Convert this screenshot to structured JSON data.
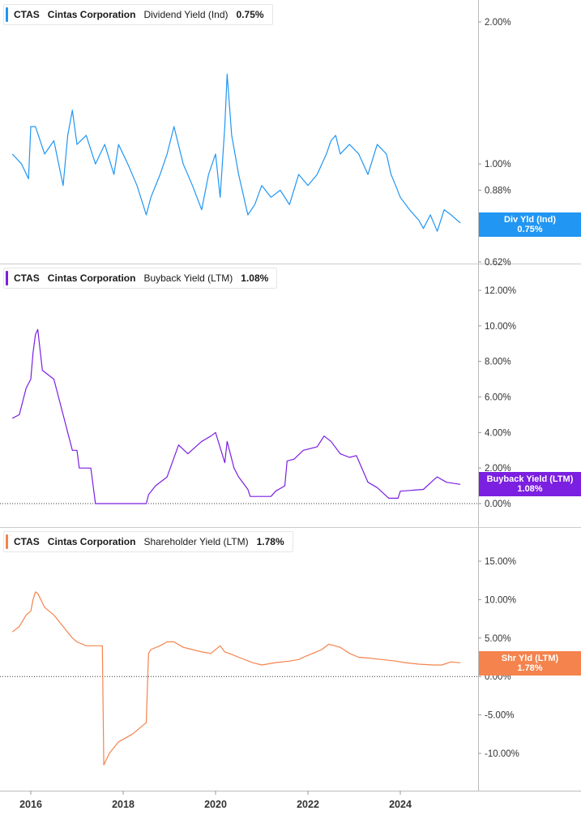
{
  "chart_data": [
    {
      "type": "line",
      "ticker": "CTAS",
      "company": "Cintas Corporation",
      "metric": "Dividend Yield (Ind)",
      "current_value": "0.75%",
      "tag_line1": "Div Yld (Ind)",
      "tag_line2": "0.75%",
      "color": "#2196f3",
      "scale": "log",
      "ylim": [
        0.6,
        2.2
      ],
      "yticks": [
        {
          "value": 2.0,
          "label": "2.00%"
        },
        {
          "value": 1.0,
          "label": "1.00%"
        },
        {
          "value": 0.88,
          "label": "0.88%"
        },
        {
          "value": 0.62,
          "label": "0.62%"
        }
      ],
      "series": [
        {
          "x": [
            2015.6,
            2015.8,
            2015.95,
            2016.0,
            2016.1,
            2016.3,
            2016.5,
            2016.7,
            2016.8,
            2016.9,
            2017.0,
            2017.2,
            2017.4,
            2017.6,
            2017.8,
            2017.9,
            2018.1,
            2018.3,
            2018.5,
            2018.6,
            2018.8,
            2018.95,
            2019.1,
            2019.3,
            2019.5,
            2019.7,
            2019.85,
            2020.0,
            2020.1,
            2020.2,
            2020.25,
            2020.35,
            2020.5,
            2020.7,
            2020.85,
            2021.0,
            2021.2,
            2021.4,
            2021.6,
            2021.8,
            2022.0,
            2022.2,
            2022.4,
            2022.5,
            2022.6,
            2022.7,
            2022.9,
            2023.1,
            2023.3,
            2023.5,
            2023.7,
            2023.8,
            2023.9,
            2024.0,
            2024.2,
            2024.4,
            2024.5,
            2024.65,
            2024.8,
            2024.95,
            2025.1,
            2025.3
          ],
          "y": [
            1.05,
            1.0,
            0.93,
            1.2,
            1.2,
            1.05,
            1.12,
            0.9,
            1.15,
            1.3,
            1.1,
            1.15,
            1.0,
            1.1,
            0.95,
            1.1,
            1.0,
            0.9,
            0.78,
            0.85,
            0.95,
            1.05,
            1.2,
            1.0,
            0.9,
            0.8,
            0.95,
            1.05,
            0.85,
            1.2,
            1.55,
            1.15,
            0.95,
            0.78,
            0.82,
            0.9,
            0.85,
            0.88,
            0.82,
            0.95,
            0.9,
            0.95,
            1.05,
            1.12,
            1.15,
            1.05,
            1.1,
            1.05,
            0.95,
            1.1,
            1.05,
            0.95,
            0.9,
            0.85,
            0.8,
            0.76,
            0.73,
            0.78,
            0.72,
            0.8,
            0.78,
            0.75
          ]
        }
      ]
    },
    {
      "type": "line",
      "ticker": "CTAS",
      "company": "Cintas Corporation",
      "metric": "Buyback Yield (LTM)",
      "current_value": "1.08%",
      "tag_line1": "Buyback Yield (LTM)",
      "tag_line2": "1.08%",
      "color": "#7b1fe0",
      "scale": "linear",
      "ylim": [
        -0.3,
        12.5
      ],
      "yticks": [
        {
          "value": 12,
          "label": "12.00%"
        },
        {
          "value": 10,
          "label": "10.00%"
        },
        {
          "value": 8,
          "label": "8.00%"
        },
        {
          "value": 6,
          "label": "6.00%"
        },
        {
          "value": 4,
          "label": "4.00%"
        },
        {
          "value": 2,
          "label": "2.00%"
        },
        {
          "value": 0,
          "label": "0.00%"
        }
      ],
      "series": [
        {
          "x": [
            2015.6,
            2015.75,
            2015.9,
            2016.0,
            2016.05,
            2016.1,
            2016.15,
            2016.25,
            2016.5,
            2016.7,
            2016.9,
            2017.0,
            2017.05,
            2017.3,
            2017.4,
            2017.55,
            2017.6,
            2018.1,
            2018.2,
            2018.5,
            2018.55,
            2018.7,
            2018.95,
            2019.2,
            2019.4,
            2019.7,
            2019.9,
            2020.0,
            2020.2,
            2020.25,
            2020.4,
            2020.5,
            2020.7,
            2020.75,
            2021.2,
            2021.3,
            2021.5,
            2021.55,
            2021.7,
            2021.9,
            2022.2,
            2022.35,
            2022.5,
            2022.7,
            2022.9,
            2023.05,
            2023.3,
            2023.5,
            2023.75,
            2023.8,
            2023.95,
            2024.0,
            2024.5,
            2024.75,
            2024.8,
            2025.0,
            2025.3
          ],
          "y": [
            4.8,
            5.0,
            6.5,
            7.0,
            8.5,
            9.5,
            9.8,
            7.5,
            7.0,
            5.0,
            3.0,
            3.0,
            2.0,
            2.0,
            0.0,
            0.0,
            0.0,
            0.0,
            0.0,
            0.0,
            0.5,
            1.0,
            1.5,
            3.3,
            2.8,
            3.5,
            3.8,
            4.0,
            2.3,
            3.5,
            2.0,
            1.5,
            0.8,
            0.4,
            0.4,
            0.7,
            1.0,
            2.4,
            2.5,
            3.0,
            3.2,
            3.8,
            3.5,
            2.8,
            2.6,
            2.7,
            1.2,
            0.9,
            0.3,
            0.3,
            0.3,
            0.7,
            0.8,
            1.4,
            1.5,
            1.2,
            1.08
          ]
        }
      ]
    },
    {
      "type": "line",
      "ticker": "CTAS",
      "company": "Cintas Corporation",
      "metric": "Shareholder Yield (LTM)",
      "current_value": "1.78%",
      "tag_line1": "Shr Yld (LTM)",
      "tag_line2": "1.78%",
      "color": "#f4834d",
      "scale": "linear",
      "ylim": [
        -12.5,
        18
      ],
      "yticks": [
        {
          "value": 15,
          "label": "15.00%"
        },
        {
          "value": 10,
          "label": "10.00%"
        },
        {
          "value": 5,
          "label": "5.00%"
        },
        {
          "value": 0,
          "label": "0.00%"
        },
        {
          "value": -5,
          "label": "-5.00%"
        },
        {
          "value": -10,
          "label": "-10.00%"
        }
      ],
      "series": [
        {
          "x": [
            2015.6,
            2015.75,
            2015.9,
            2016.0,
            2016.05,
            2016.1,
            2016.15,
            2016.3,
            2016.5,
            2016.7,
            2016.9,
            2017.0,
            2017.2,
            2017.4,
            2017.55,
            2017.58,
            2017.7,
            2017.9,
            2018.2,
            2018.5,
            2018.55,
            2018.6,
            2018.8,
            2018.95,
            2019.1,
            2019.3,
            2019.5,
            2019.7,
            2019.9,
            2020.1,
            2020.2,
            2020.3,
            2020.5,
            2020.8,
            2021.0,
            2021.3,
            2021.6,
            2021.8,
            2021.9,
            2022.1,
            2022.3,
            2022.45,
            2022.7,
            2022.9,
            2023.1,
            2023.3,
            2023.6,
            2023.9,
            2024.1,
            2024.4,
            2024.7,
            2024.9,
            2025.1,
            2025.3
          ],
          "y": [
            5.8,
            6.5,
            8.0,
            8.5,
            10.0,
            11.0,
            10.8,
            9.0,
            8.0,
            6.5,
            5.0,
            4.5,
            4.0,
            4.0,
            4.0,
            -11.5,
            -10.0,
            -8.5,
            -7.5,
            -6.0,
            3.0,
            3.5,
            4.0,
            4.5,
            4.5,
            3.8,
            3.5,
            3.2,
            3.0,
            4.0,
            3.2,
            3.0,
            2.5,
            1.8,
            1.5,
            1.8,
            2.0,
            2.2,
            2.5,
            3.0,
            3.5,
            4.2,
            3.8,
            3.0,
            2.5,
            2.4,
            2.2,
            2.0,
            1.8,
            1.6,
            1.5,
            1.5,
            1.9,
            1.78
          ]
        }
      ]
    }
  ],
  "x_axis": {
    "ticks": [
      {
        "value": 2016,
        "label": "2016"
      },
      {
        "value": 2018,
        "label": "2018"
      },
      {
        "value": 2020,
        "label": "2020"
      },
      {
        "value": 2022,
        "label": "2022"
      },
      {
        "value": 2024,
        "label": "2024"
      }
    ],
    "range": [
      2015.6,
      2025.9
    ]
  }
}
